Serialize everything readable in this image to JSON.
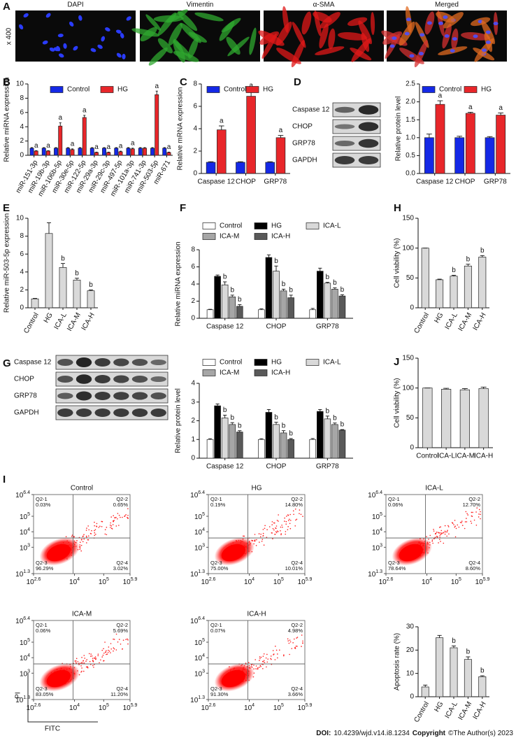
{
  "micrographs": {
    "panel": "A",
    "magnification": "x 400",
    "channels": [
      {
        "label": "DAPI",
        "color": "#2233ff"
      },
      {
        "label": "Vimentin",
        "color": "#1f9a1f"
      },
      {
        "label": "α-SMA",
        "color": "#e81111"
      },
      {
        "label": "Merged",
        "color": "#000000"
      }
    ]
  },
  "blots": [
    {
      "panel": "D",
      "proteins": [
        "Caspase 12",
        "CHOP",
        "GRP78",
        "GAPDH"
      ]
    },
    {
      "panel": "G",
      "proteins": [
        "Caspase 12",
        "CHOP",
        "GRP78",
        "GAPDH"
      ]
    }
  ],
  "chart_data": [
    {
      "panel": "B",
      "type": "bar",
      "ylabel": "Relative miRNA expression",
      "categories": [
        "miR-151-3p",
        "miR-19b-3p",
        "miR-106b-5p",
        "miR-30e-5p",
        "miR-122-5p",
        "miR-29a-3p",
        "miR-29c-3p",
        "miR-497-5p",
        "miR-101a-3p",
        "miR-741-3p",
        "miR-503-5p",
        "miR-671"
      ],
      "series": [
        {
          "name": "Control",
          "color": "#1428e6",
          "values": [
            1,
            1,
            1,
            1,
            1,
            1,
            1,
            1,
            1,
            1,
            1,
            1
          ],
          "errors": [
            0.08,
            0.08,
            0.08,
            0.08,
            0.08,
            0.08,
            0.08,
            0.08,
            0.08,
            0.08,
            0.08,
            0.08
          ]
        },
        {
          "name": "HG",
          "color": "#e8262a",
          "values": [
            0.6,
            0.6,
            4.1,
            0.8,
            5.3,
            0.4,
            0.4,
            0.5,
            0.9,
            1.0,
            8.5,
            0.4
          ],
          "errors": [
            0.05,
            0.05,
            0.45,
            0.1,
            0.3,
            0.05,
            0.05,
            0.08,
            0.1,
            0.08,
            0.5,
            0.05
          ],
          "annotations": [
            "a",
            "a",
            "a",
            "a",
            "a",
            "a",
            "a",
            "a",
            "a",
            null,
            "a",
            "a"
          ]
        }
      ],
      "ylim": [
        0,
        10
      ],
      "yticks": [
        0,
        2,
        4,
        6,
        8,
        10
      ]
    },
    {
      "panel": "C",
      "type": "bar",
      "ylabel": "Relative mRNA expression",
      "categories": [
        "Caspase 12",
        "CHOP",
        "GRP78"
      ],
      "series": [
        {
          "name": "Control",
          "color": "#1428e6",
          "values": [
            1,
            1,
            1
          ],
          "errors": [
            0.05,
            0.05,
            0.05
          ]
        },
        {
          "name": "HG",
          "color": "#e8262a",
          "values": [
            3.9,
            6.9,
            3.2
          ],
          "errors": [
            0.35,
            0.5,
            0.2
          ],
          "annotations": [
            "a",
            "a",
            "a"
          ]
        }
      ],
      "ylim": [
        0,
        8
      ],
      "yticks": [
        0,
        2,
        4,
        6,
        8
      ]
    },
    {
      "type": "bar",
      "ylabel": "Relative protein level",
      "categories": [
        "Caspase 12",
        "CHOP",
        "GRP78"
      ],
      "series": [
        {
          "name": "Control",
          "color": "#1428e6",
          "values": [
            1,
            1,
            1
          ],
          "errors": [
            0.1,
            0.04,
            0.03
          ]
        },
        {
          "name": "HG",
          "color": "#e8262a",
          "values": [
            1.93,
            1.68,
            1.63
          ],
          "errors": [
            0.1,
            0.03,
            0.06
          ],
          "annotations": [
            "a",
            "a",
            "a"
          ]
        }
      ],
      "ylim": [
        0,
        2.5
      ],
      "yticks": [
        {
          "value": 0,
          "label": "0.0"
        },
        0.5,
        {
          "value": 1,
          "label": "1.0"
        },
        1.5,
        {
          "value": 2,
          "label": "2.0"
        },
        2.5
      ]
    },
    {
      "panel": "E",
      "type": "bar",
      "ylabel": "Relative miR-503-5p expression",
      "categories": [
        "Control",
        "HG",
        "ICA-L",
        "ICA-M",
        "ICA-H"
      ],
      "series": [
        {
          "color": "#d9d9d9",
          "values": [
            1,
            8.3,
            4.5,
            3.1,
            1.9
          ],
          "errors": [
            0.05,
            1.2,
            0.45,
            0.2,
            0.1
          ],
          "annotations": [
            null,
            null,
            "b",
            "b",
            "b"
          ]
        }
      ],
      "ylim": [
        0,
        10
      ],
      "yticks": [
        0,
        2,
        4,
        6,
        8,
        10
      ]
    },
    {
      "panel": "F",
      "type": "bar",
      "ylabel": "Relative miRNA expression",
      "categories": [
        "Caspase 12",
        "CHOP",
        "GRP78"
      ],
      "series": [
        {
          "name": "Control",
          "color": "#ffffff",
          "values": [
            1,
            1,
            1
          ],
          "errors": [
            0.05,
            0.1,
            0.15
          ]
        },
        {
          "name": "HG",
          "color": "#000000",
          "values": [
            4.9,
            7.1,
            5.5
          ],
          "errors": [
            0.15,
            0.3,
            0.35
          ]
        },
        {
          "name": "ICA-L",
          "color": "#d9d9d9",
          "values": [
            3.9,
            5.5,
            4.1
          ],
          "errors": [
            0.35,
            0.6,
            0.1
          ],
          "annotations": [
            "b",
            "b",
            "b"
          ]
        },
        {
          "name": "ICA-M",
          "color": "#a6a6a6",
          "values": [
            2.5,
            3.2,
            3.4
          ],
          "errors": [
            0.2,
            0.2,
            0.15
          ],
          "annotations": [
            "b",
            "b",
            "b"
          ]
        },
        {
          "name": "ICA-H",
          "color": "#595959",
          "values": [
            1.4,
            2.4,
            2.6
          ],
          "errors": [
            0.2,
            0.3,
            0.15
          ],
          "annotations": [
            "b",
            "b",
            "b"
          ]
        }
      ],
      "ylim": [
        0,
        8
      ],
      "yticks": [
        0,
        2,
        4,
        6,
        8
      ]
    },
    {
      "panel": "H",
      "type": "bar",
      "ylabel": "Cell viability (%)",
      "categories": [
        "Control",
        "HG",
        "ICA-L",
        "ICA-M",
        "ICA-H"
      ],
      "series": [
        {
          "color": "#d9d9d9",
          "values": [
            100,
            47,
            53,
            70,
            85
          ],
          "errors": [
            0,
            1,
            1.5,
            3,
            2.5
          ],
          "annotations": [
            null,
            null,
            "b",
            "b",
            "b"
          ]
        }
      ],
      "ylim": [
        0,
        150
      ],
      "yticks": [
        0,
        50,
        100,
        150
      ]
    },
    {
      "type": "bar",
      "ylabel": "Relative protein level",
      "categories": [
        "Caspase 12",
        "CHOP",
        "GRP78"
      ],
      "series": [
        {
          "name": "Control",
          "color": "#ffffff",
          "values": [
            1,
            1,
            1
          ],
          "errors": [
            0.04,
            0.04,
            0.05
          ]
        },
        {
          "name": "HG",
          "color": "#000000",
          "values": [
            2.8,
            2.45,
            2.5
          ],
          "errors": [
            0.1,
            0.15,
            0.1
          ]
        },
        {
          "name": "ICA-L",
          "color": "#d9d9d9",
          "values": [
            2.15,
            1.8,
            2.1
          ],
          "errors": [
            0.15,
            0.12,
            0.15
          ],
          "annotations": [
            "b",
            "b",
            "b"
          ]
        },
        {
          "name": "ICA-M",
          "color": "#a6a6a6",
          "values": [
            1.8,
            1.35,
            1.8
          ],
          "errors": [
            0.1,
            0.12,
            0.08
          ],
          "annotations": [
            "b",
            "b",
            "b"
          ]
        },
        {
          "name": "ICA-H",
          "color": "#595959",
          "values": [
            1.4,
            1.0,
            1.5
          ],
          "errors": [
            0.07,
            0.05,
            0.03
          ],
          "annotations": [
            "b",
            "b",
            "b"
          ]
        }
      ],
      "ylim": [
        0,
        4
      ],
      "yticks": [
        0,
        1,
        2,
        3,
        4
      ]
    },
    {
      "panel": "J",
      "type": "bar",
      "ylabel": "Cell viability (%)",
      "categories": [
        "Control",
        "ICA-L",
        "ICA-M",
        "ICA-H"
      ],
      "series": [
        {
          "color": "#d9d9d9",
          "values": [
            100,
            98,
            97,
            99
          ],
          "errors": [
            0,
            1.5,
            2,
            2.5
          ]
        }
      ],
      "ylim": [
        0,
        150
      ],
      "yticks": [
        0,
        50,
        100,
        150
      ]
    },
    {
      "type": "bar",
      "ylabel": "Apoptosis rate (%)",
      "categories": [
        "Control",
        "HG",
        "ICA-L",
        "ICA-M",
        "ICA-H"
      ],
      "series": [
        {
          "color": "#d9d9d9",
          "values": [
            4.2,
            25.3,
            21,
            16,
            8.6
          ],
          "errors": [
            0.8,
            1,
            0.8,
            1.1,
            0.4
          ],
          "annotations": [
            null,
            null,
            "b",
            "b",
            "b"
          ]
        }
      ],
      "ylim": [
        0,
        30
      ],
      "yticks": [
        0,
        10,
        20,
        30
      ]
    }
  ],
  "flow": {
    "panel": "I",
    "xlabel": "FITC",
    "ylabel": "PI",
    "tick_base": "10",
    "xlim": [
      2.6,
      5.9
    ],
    "xticks": [
      2.6,
      4,
      5,
      5.9
    ],
    "ylim": [
      1.3,
      6.4
    ],
    "yticks": [
      6.4,
      5,
      4,
      3,
      1.3
    ],
    "plots": [
      {
        "title": "Control",
        "quadrants": [
          {
            "name": "Q2-1",
            "percent": "0.03%"
          },
          {
            "name": "Q2-2",
            "percent": "0.65%"
          },
          {
            "name": "Q2-3",
            "percent": "96.29%"
          },
          {
            "name": "Q2-4",
            "percent": "3.02%"
          }
        ]
      },
      {
        "title": "HG",
        "quadrants": [
          {
            "name": "Q2-1",
            "percent": "0.19%"
          },
          {
            "name": "Q2-2",
            "percent": "14.80%"
          },
          {
            "name": "Q2-3",
            "percent": "75.00%"
          },
          {
            "name": "Q2-4",
            "percent": "10.01%"
          }
        ]
      },
      {
        "title": "ICA-L",
        "quadrants": [
          {
            "name": "Q2-1",
            "percent": "0.06%"
          },
          {
            "name": "Q2-2",
            "percent": "12.70%"
          },
          {
            "name": "Q2-3",
            "percent": "78.64%"
          },
          {
            "name": "Q2-4",
            "percent": "8.60%"
          }
        ]
      },
      {
        "title": "ICA-M",
        "quadrants": [
          {
            "name": "Q2-1",
            "percent": "0.06%"
          },
          {
            "name": "Q2-2",
            "percent": "5.69%"
          },
          {
            "name": "Q2-3",
            "percent": "83.05%"
          },
          {
            "name": "Q2-4",
            "percent": "11.20%"
          }
        ]
      },
      {
        "title": "ICA-H",
        "quadrants": [
          {
            "name": "Q2-1",
            "percent": "0.07%"
          },
          {
            "name": "Q2-2",
            "percent": "4.98%"
          },
          {
            "name": "Q2-3",
            "percent": "91.30%"
          },
          {
            "name": "Q2-4",
            "percent": "3.66%"
          }
        ]
      }
    ]
  },
  "footer": {
    "doi_label": "DOI:",
    "doi": "10.4239/wjd.v14.i8.1234",
    "copyright_label": "Copyright",
    "copyright": "©The Author(s) 2023"
  }
}
